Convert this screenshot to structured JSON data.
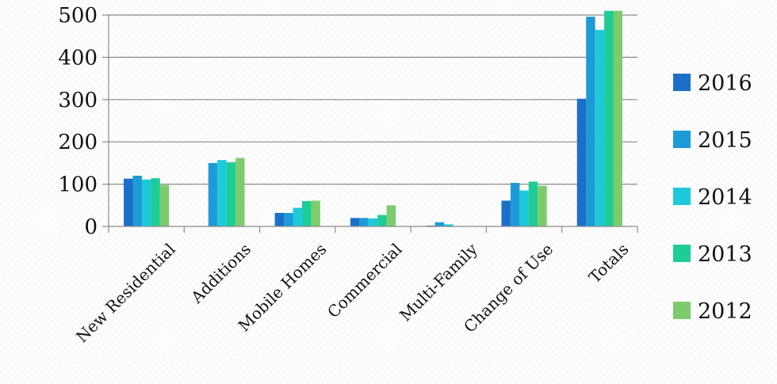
{
  "chart_data": {
    "type": "bar",
    "title": "",
    "xlabel": "",
    "ylabel": "",
    "categories": [
      "New Residential",
      "Additions",
      "Mobile Homes",
      "Commercial",
      "Multi-Family",
      "Change of Use",
      "Totals"
    ],
    "ylim": [
      0,
      500
    ],
    "yticks": [
      0,
      100,
      200,
      300,
      400,
      500
    ],
    "grid": true,
    "legend_position": "right",
    "series": [
      {
        "name": "2016",
        "color": "#1a6fc9",
        "values": [
          113,
          0,
          32,
          20,
          2,
          61,
          302
        ]
      },
      {
        "name": "2015",
        "color": "#1e9ad6",
        "values": [
          120,
          150,
          32,
          20,
          10,
          103,
          496
        ]
      },
      {
        "name": "2014",
        "color": "#1ec9dc",
        "values": [
          111,
          157,
          44,
          19,
          5,
          85,
          465
        ]
      },
      {
        "name": "2013",
        "color": "#1dcc97",
        "values": [
          114,
          152,
          60,
          27,
          0,
          106,
          510
        ]
      },
      {
        "name": "2012",
        "color": "#7ccc6b",
        "values": [
          98,
          162,
          61,
          50,
          0,
          96,
          510
        ]
      }
    ]
  }
}
